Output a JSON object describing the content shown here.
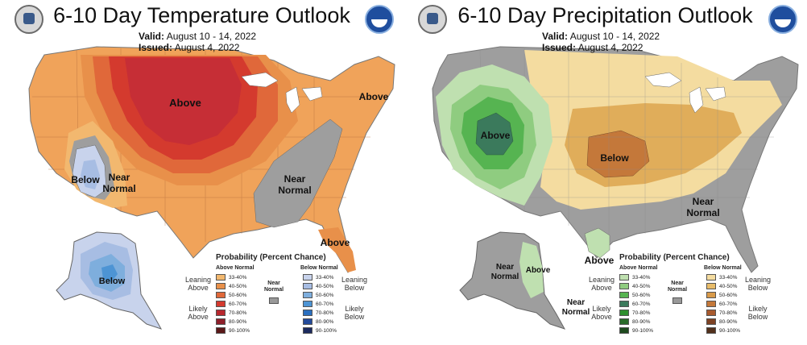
{
  "temperature": {
    "title": "6-10 Day Temperature Outlook",
    "valid_label": "Valid:",
    "valid_value": "August 10 - 14, 2022",
    "issued_label": "Issued:",
    "issued_value": "August 4, 2022",
    "map_labels": {
      "above_center": "Above",
      "above_east": "Above",
      "above_florida": "Above",
      "below_sw": "Below",
      "near_sw_1": "Near",
      "near_sw_2": "Normal",
      "near_se_1": "Near",
      "near_se_2": "Normal",
      "below_alaska": "Below"
    },
    "legend": {
      "title": "Probability (Percent Chance)",
      "left_head": "Above Normal",
      "right_head": "Below Normal",
      "near_head_1": "Near",
      "near_head_2": "Normal",
      "levels": [
        "33-40%",
        "40-50%",
        "50-60%",
        "60-70%",
        "70-80%",
        "80-90%",
        "90-100%"
      ],
      "left_colors": [
        "#f2b86f",
        "#e8904a",
        "#e0683a",
        "#d43a2e",
        "#b8282e",
        "#8e1f2a",
        "#5a1818"
      ],
      "right_colors": [
        "#c8d3ec",
        "#a7bde3",
        "#7eaedd",
        "#4d94d4",
        "#2a6fbf",
        "#234a9a",
        "#1c2a5e"
      ],
      "leaning_left_1": "Leaning",
      "leaning_left_2": "Above",
      "likely_left_1": "Likely",
      "likely_left_2": "Above",
      "leaning_right_1": "Leaning",
      "leaning_right_2": "Below",
      "likely_right_1": "Likely",
      "likely_right_2": "Below"
    }
  },
  "precipitation": {
    "title": "6-10 Day Precipitation Outlook",
    "valid_label": "Valid:",
    "valid_value": "August 10 - 14, 2022",
    "issued_label": "Issued:",
    "issued_value": "August 4, 2022",
    "map_labels": {
      "above_west": "Above",
      "below_central": "Below",
      "near_se_1": "Near",
      "near_se_2": "Normal",
      "above_gulf": "Above",
      "near_ak_1": "Near",
      "near_ak_2": "Normal",
      "above_ak": "Above",
      "near_aksouth_1": "Near",
      "near_aksouth_2": "Normal"
    },
    "legend": {
      "title": "Probability (Percent Chance)",
      "left_head": "Above Normal",
      "right_head": "Below Normal",
      "near_head_1": "Near",
      "near_head_2": "Normal",
      "levels": [
        "33-40%",
        "40-50%",
        "50-60%",
        "60-70%",
        "70-80%",
        "80-90%",
        "90-100%"
      ],
      "left_colors": [
        "#bfe0b0",
        "#8fcc80",
        "#56b451",
        "#3b7a5c",
        "#2f8f2f",
        "#2a6b2a",
        "#1f4a1f"
      ],
      "right_colors": [
        "#f4dca0",
        "#e8bc6a",
        "#d89a4a",
        "#c4783a",
        "#a85a2e",
        "#7e4224",
        "#52301c"
      ],
      "leaning_left_1": "Leaning",
      "leaning_left_2": "Above",
      "likely_left_1": "Likely",
      "likely_left_2": "Above",
      "leaning_right_1": "Leaning",
      "leaning_right_2": "Below",
      "likely_right_1": "Likely",
      "likely_right_2": "Below"
    }
  }
}
